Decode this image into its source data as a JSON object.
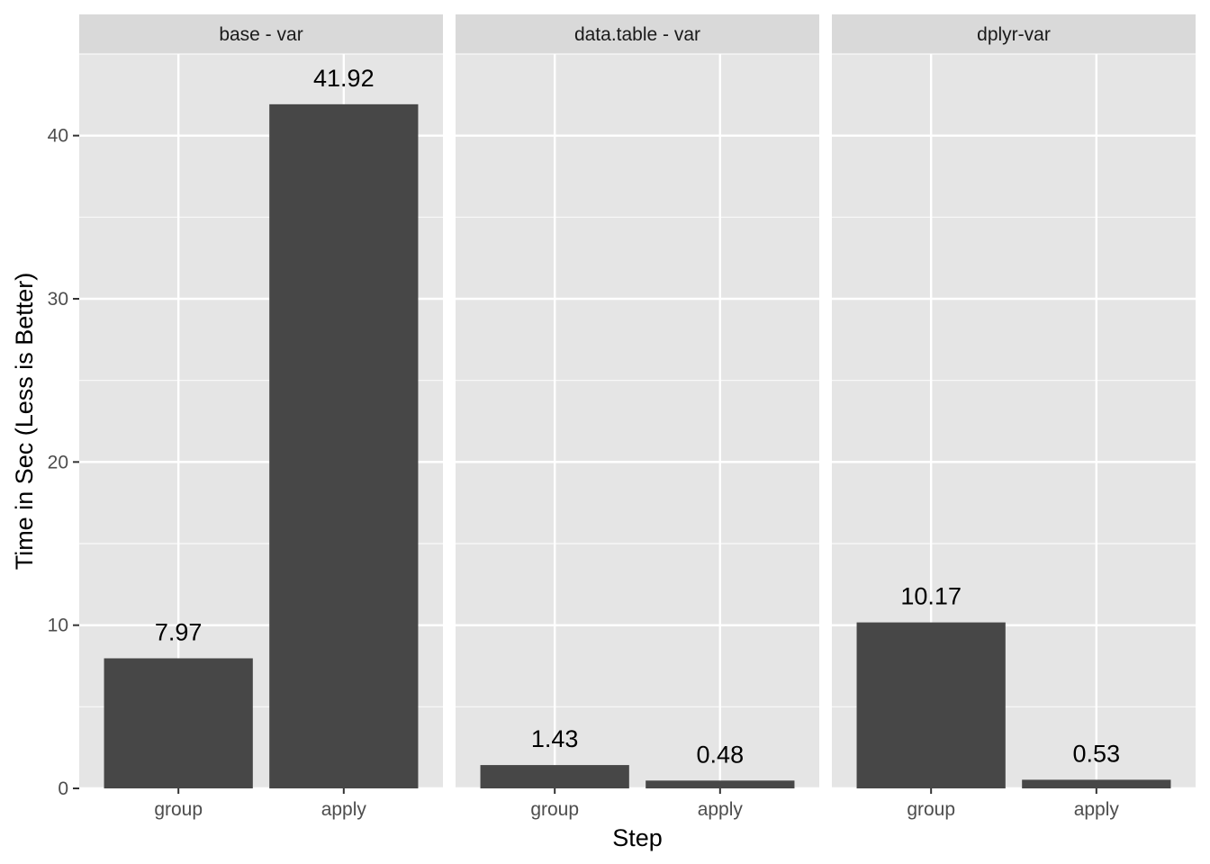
{
  "chart_data": {
    "type": "bar",
    "xlabel": "Step",
    "ylabel": "Time in Sec (Less is Better)",
    "ylim": [
      0,
      45
    ],
    "yticks": [
      0,
      10,
      20,
      30,
      40
    ],
    "grid": true,
    "categories": [
      "group",
      "apply"
    ],
    "facets": [
      {
        "label": "base - var",
        "values": [
          7.97,
          41.92
        ],
        "value_labels": [
          "7.97",
          "41.92"
        ]
      },
      {
        "label": "data.table - var",
        "values": [
          1.43,
          0.48
        ],
        "value_labels": [
          "1.43",
          "0.48"
        ]
      },
      {
        "label": "dplyr-var",
        "values": [
          10.17,
          0.53
        ],
        "value_labels": [
          "10.17",
          "0.53"
        ]
      }
    ]
  },
  "colors": {
    "panel_background": "#e5e5e5",
    "strip_background": "#d9d9d9",
    "grid": "#ffffff",
    "bar_fill": "#474747"
  }
}
